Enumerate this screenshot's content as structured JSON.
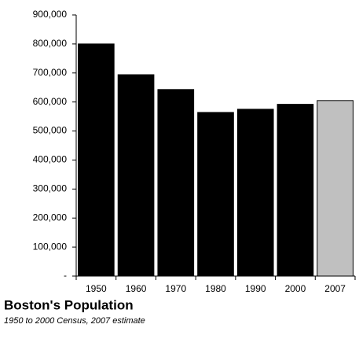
{
  "chart_data": {
    "type": "bar",
    "title": "Boston's Population",
    "subtitle": "1950 to 2000 Census, 2007 estimate",
    "categories": [
      "1950",
      "1960",
      "1970",
      "1980",
      "1990",
      "2000",
      "2007"
    ],
    "values": [
      800000,
      694000,
      643000,
      564000,
      575000,
      592000,
      605000
    ],
    "colors": [
      "#000000",
      "#000000",
      "#000000",
      "#000000",
      "#000000",
      "#000000",
      "#c0c0c0"
    ],
    "ylim": [
      0,
      900000
    ],
    "yticks": [
      {
        "value": 0,
        "label": "-"
      },
      {
        "value": 100000,
        "label": "100,000"
      },
      {
        "value": 200000,
        "label": "200,000"
      },
      {
        "value": 300000,
        "label": "300,000"
      },
      {
        "value": 400000,
        "label": "400,000"
      },
      {
        "value": 500000,
        "label": "500,000"
      },
      {
        "value": 600000,
        "label": "600,000"
      },
      {
        "value": 700000,
        "label": "700,000"
      },
      {
        "value": 800000,
        "label": "800,000"
      },
      {
        "value": 900000,
        "label": "900,000"
      }
    ],
    "grid": false
  }
}
